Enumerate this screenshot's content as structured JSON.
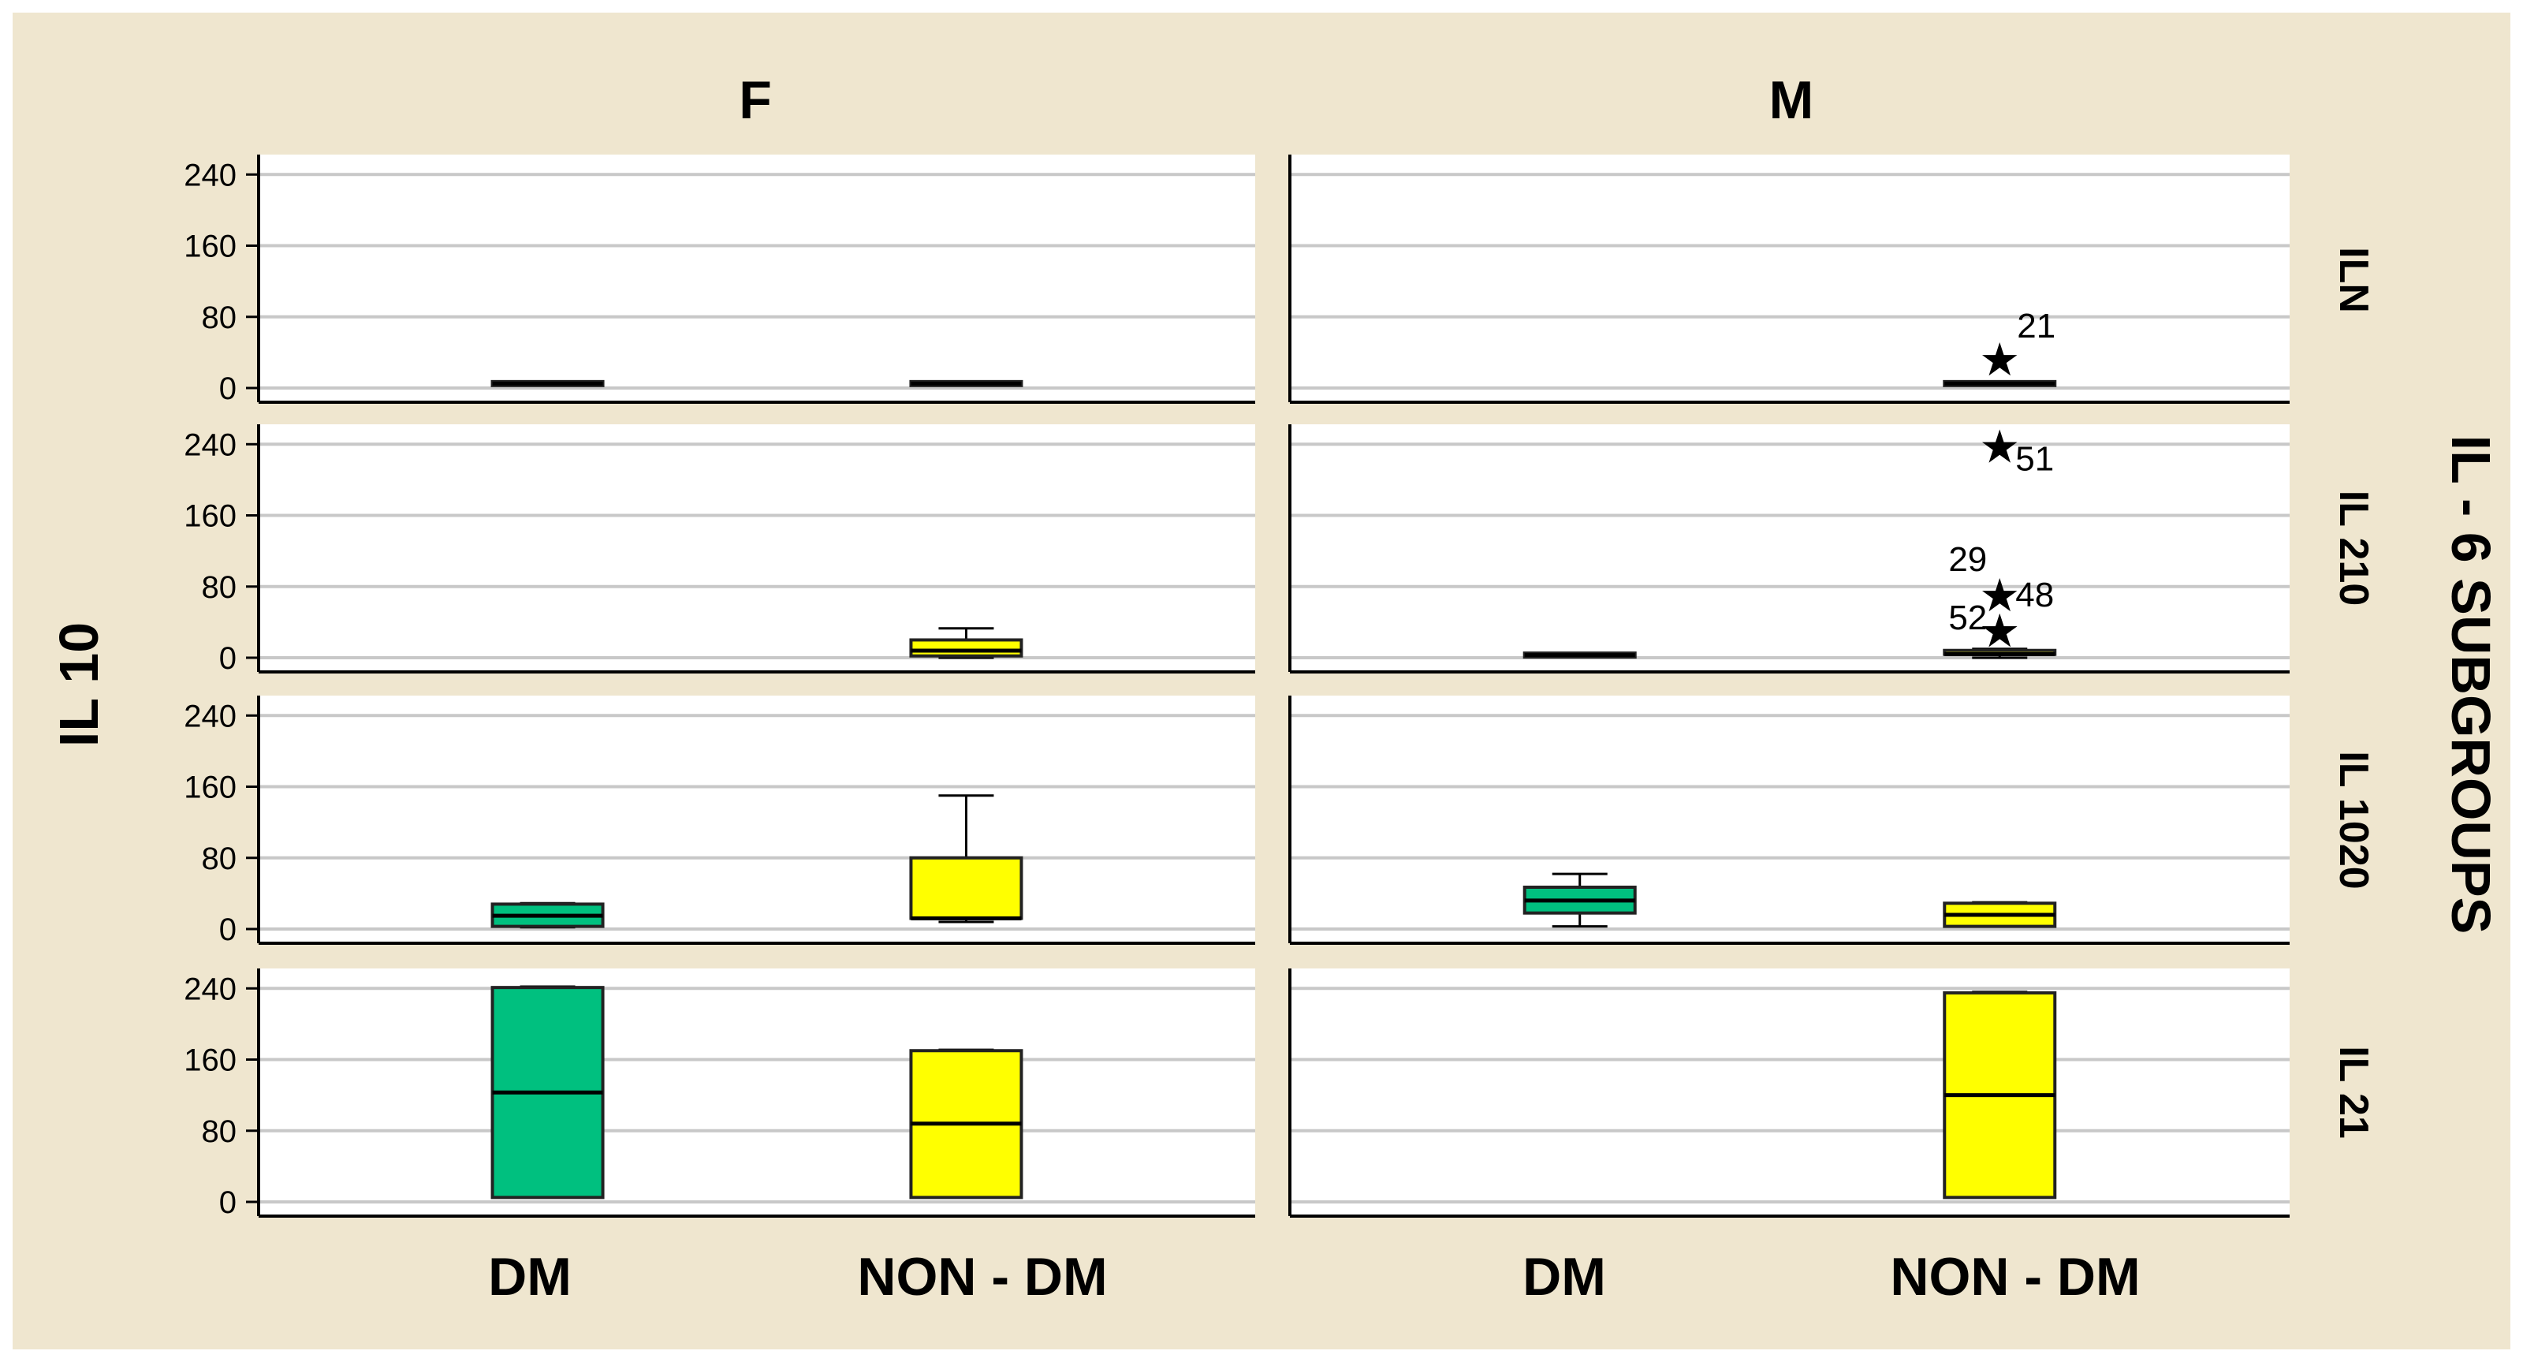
{
  "chart_data": {
    "type": "boxplot",
    "ylabel": "IL 10",
    "row_group_label": "IL - 6 SUBGROUPS",
    "columns": [
      "F",
      "M"
    ],
    "rows": [
      "ILN",
      "IL 210",
      "IL 1020",
      "IL 21"
    ],
    "categories": [
      "DM",
      "NON - DM"
    ],
    "ylim": [
      0,
      250
    ],
    "yticks": [
      0,
      80,
      160,
      240
    ],
    "grid": true,
    "colors": {
      "DM": "#00c07f",
      "NON - DM": "#ffff00",
      "background": "#efe6cf",
      "grid": "#c8c8c8"
    },
    "panels": [
      {
        "row": "ILN",
        "column": "F",
        "boxes": [
          {
            "category": "DM",
            "min": 5,
            "q1": 5,
            "median": 5,
            "q3": 5,
            "max": 5
          },
          {
            "category": "NON - DM",
            "min": 5,
            "q1": 5,
            "median": 5,
            "q3": 5,
            "max": 5
          }
        ],
        "outliers": []
      },
      {
        "row": "ILN",
        "column": "M",
        "boxes": [
          {
            "category": "NON - DM",
            "min": 5,
            "q1": 5,
            "median": 5,
            "q3": 5,
            "max": 5
          }
        ],
        "outliers": [
          {
            "category": "NON - DM",
            "value": 32,
            "label": "21"
          }
        ]
      },
      {
        "row": "IL 210",
        "column": "F",
        "boxes": [
          {
            "category": "NON - DM",
            "min": 0,
            "q1": 2,
            "median": 8,
            "q3": 20,
            "max": 33
          }
        ],
        "outliers": []
      },
      {
        "row": "IL 210",
        "column": "M",
        "boxes": [
          {
            "category": "DM",
            "min": 3,
            "q1": 3,
            "median": 3,
            "q3": 3,
            "max": 3
          },
          {
            "category": "NON - DM",
            "min": 0,
            "q1": 2,
            "median": 4,
            "q3": 6,
            "max": 10
          }
        ],
        "outliers": [
          {
            "category": "NON - DM",
            "value": 237,
            "label": "51"
          },
          {
            "category": "NON - DM",
            "value": 70,
            "label": "48"
          },
          {
            "category": "NON - DM",
            "value": 30,
            "label": "52"
          },
          {
            "category": "NON - DM",
            "value": 30,
            "label": "29"
          }
        ]
      },
      {
        "row": "IL 1020",
        "column": "F",
        "boxes": [
          {
            "category": "DM",
            "min": 2,
            "q1": 3,
            "median": 15,
            "q3": 28,
            "max": 29
          },
          {
            "category": "NON - DM",
            "min": 8,
            "q1": 12,
            "median": 12,
            "q3": 80,
            "max": 150
          }
        ],
        "outliers": []
      },
      {
        "row": "IL 1020",
        "column": "M",
        "boxes": [
          {
            "category": "DM",
            "min": 3,
            "q1": 18,
            "median": 32,
            "q3": 47,
            "max": 62
          },
          {
            "category": "NON - DM",
            "min": 3,
            "q1": 3,
            "median": 16,
            "q3": 29,
            "max": 30
          }
        ],
        "outliers": []
      },
      {
        "row": "IL 21",
        "column": "F",
        "boxes": [
          {
            "category": "DM",
            "min": 5,
            "q1": 5,
            "median": 123,
            "q3": 241,
            "max": 242
          },
          {
            "category": "NON - DM",
            "min": 5,
            "q1": 5,
            "median": 88,
            "q3": 170,
            "max": 171
          }
        ],
        "outliers": []
      },
      {
        "row": "IL 21",
        "column": "M",
        "boxes": [
          {
            "category": "NON - DM",
            "min": 5,
            "q1": 5,
            "median": 120,
            "q3": 235,
            "max": 236
          }
        ],
        "outliers": []
      }
    ]
  }
}
